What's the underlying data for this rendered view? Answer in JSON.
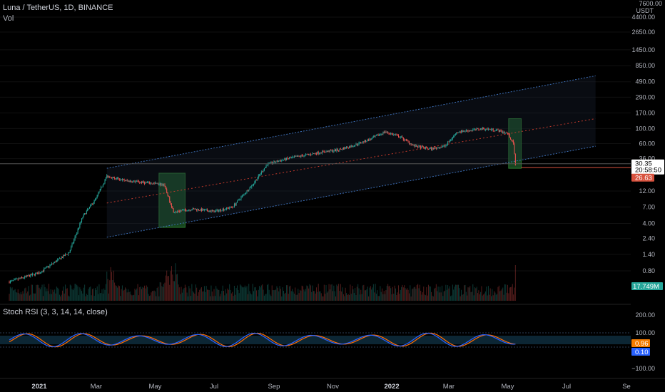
{
  "header": {
    "symbol": "Luna / TetherUS, 1D, BINANCE",
    "vol_label": "Vol"
  },
  "indicator": {
    "label": "Stoch RSI (3, 3, 14, 14, close)",
    "k_value": "0.96",
    "d_value": "0.10",
    "axis_labels": [
      "200.00",
      "100.00",
      "0.00",
      "−100.00"
    ]
  },
  "price_axis": {
    "unit_top": "7600.00",
    "unit": "USDT",
    "labels": [
      "4400.00",
      "2650.00",
      "1450.00",
      "850.00",
      "490.00",
      "290.00",
      "170.00",
      "100.00",
      "60.00",
      "36.00",
      "12.00",
      "7.00",
      "4.00",
      "2.40",
      "1.40",
      "0.80"
    ],
    "last_price": "30.35",
    "countdown": "20:58:50",
    "alt_price": "26.63",
    "volume_value": "17.749M"
  },
  "time_axis": {
    "labels": [
      "2021",
      "Mar",
      "May",
      "Jul",
      "Sep",
      "Nov",
      "2022",
      "Mar",
      "May",
      "Jul",
      "Se"
    ]
  },
  "colors": {
    "background": "#000000",
    "up": "#26a69a",
    "down": "#ef5350",
    "channel": "#3d6fb6",
    "midline": "#c0392b",
    "highlight": "#1e5c2a",
    "k_line": "#2962ff",
    "d_line": "#ff6d00",
    "last_price_tag": "#ffffff",
    "alt_price_tag": "#d8523e",
    "volume_tag": "#26a69a",
    "k_tag": "#f57c00",
    "d_tag": "#2962ff"
  },
  "chart_data": {
    "type": "candlestick",
    "scale": "log",
    "ylim": [
      0.5,
      7600
    ],
    "x_ticks": [
      "2021",
      "Mar",
      "May",
      "Jul",
      "Sep",
      "Nov",
      "2022",
      "Mar",
      "May",
      "Jul",
      "Se"
    ],
    "price_path": {
      "dates": [
        "2020-12-01",
        "2021-01-01",
        "2021-02-01",
        "2021-02-15",
        "2021-03-01",
        "2021-03-12",
        "2021-04-01",
        "2021-04-20",
        "2021-05-10",
        "2021-05-20",
        "2021-06-10",
        "2021-07-01",
        "2021-07-20",
        "2021-08-10",
        "2021-08-25",
        "2021-09-15",
        "2021-10-01",
        "2021-10-20",
        "2021-11-05",
        "2021-11-20",
        "2021-12-10",
        "2021-12-25",
        "2022-01-10",
        "2022-01-25",
        "2022-02-10",
        "2022-02-25",
        "2022-03-10",
        "2022-03-25",
        "2022-04-05",
        "2022-04-20",
        "2022-05-01",
        "2022-05-07",
        "2022-05-09"
      ],
      "close": [
        0.55,
        0.75,
        1.5,
        5.0,
        9.5,
        20.0,
        17.0,
        16.0,
        15.0,
        6.0,
        6.5,
        6.0,
        7.0,
        15.0,
        30.0,
        36.0,
        40.0,
        45.0,
        48.0,
        55.0,
        70.0,
        90.0,
        75.0,
        55.0,
        50.0,
        55.0,
        90.0,
        95.0,
        100.0,
        95.0,
        85.0,
        60.0,
        28.0
      ]
    },
    "channel": {
      "upper": [
        [
          "2021-03-12",
          26.0
        ],
        [
          "2022-07-31",
          600.0
        ]
      ],
      "middle": [
        [
          "2021-03-12",
          8.0
        ],
        [
          "2022-07-31",
          140.0
        ]
      ],
      "lower": [
        [
          "2021-03-12",
          2.5
        ],
        [
          "2022-07-31",
          55.0
        ]
      ]
    },
    "highlight_zones": [
      {
        "from": "2021-05-05",
        "to": "2021-06-01",
        "low": 3.5,
        "high": 22.0
      },
      {
        "from": "2022-05-02",
        "to": "2022-05-15",
        "low": 26.0,
        "high": 140.0
      }
    ],
    "horizontal_lines": [
      30.35,
      26.63
    ],
    "volume_last": 17.749,
    "stoch_rsi": {
      "k": 0.96,
      "d": 0.1,
      "bands": [
        80,
        20
      ],
      "ylim": [
        -100,
        200
      ]
    }
  }
}
